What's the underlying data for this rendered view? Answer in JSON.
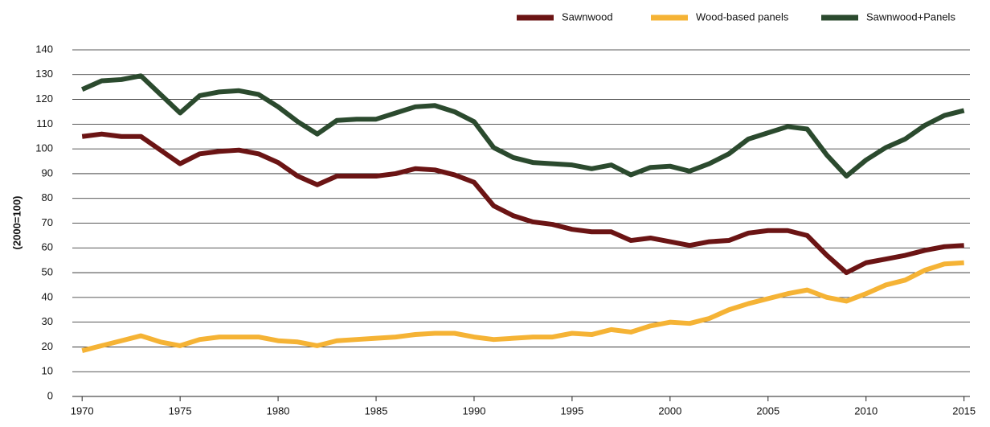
{
  "chart_data": {
    "type": "line",
    "ylabel": "(2000=100)",
    "x": [
      1970,
      1971,
      1972,
      1973,
      1974,
      1975,
      1976,
      1977,
      1978,
      1979,
      1980,
      1981,
      1982,
      1983,
      1984,
      1985,
      1986,
      1987,
      1988,
      1989,
      1990,
      1991,
      1992,
      1993,
      1994,
      1995,
      1996,
      1997,
      1998,
      1999,
      2000,
      2001,
      2002,
      2003,
      2004,
      2005,
      2006,
      2007,
      2008,
      2009,
      2010,
      2011,
      2012,
      2013,
      2014,
      2015
    ],
    "series": [
      {
        "name": "Sawnwood",
        "color": "#6b1414",
        "values": [
          105,
          106,
          105,
          105,
          99.5,
          94,
          98,
          99,
          99.5,
          98,
          94.5,
          89,
          85.5,
          89,
          89,
          89,
          90,
          92,
          91.5,
          89.5,
          86.5,
          77,
          73,
          70.5,
          69.5,
          67.5,
          66.5,
          66.5,
          63,
          64,
          62.5,
          61,
          62.5,
          63,
          66,
          67,
          67,
          65,
          57,
          50,
          54,
          55.5,
          57,
          59,
          60.5,
          61
        ]
      },
      {
        "name": "Wood-based panels",
        "color": "#f5b335",
        "values": [
          18.5,
          20.5,
          22.5,
          24.5,
          22,
          20.5,
          23,
          24,
          24,
          24,
          22.5,
          22,
          20.5,
          22.5,
          23,
          23.5,
          24,
          25,
          25.5,
          25.5,
          24,
          23,
          23.5,
          24,
          24,
          25.5,
          25,
          27,
          26,
          28.5,
          30,
          29.5,
          31.5,
          35,
          37.5,
          39.5,
          41.5,
          43,
          40,
          38.5,
          41.5,
          45,
          47,
          51,
          53.5,
          54
        ]
      },
      {
        "name": "Sawnwood+Panels",
        "color": "#2b4a2e",
        "values": [
          124,
          127.5,
          128,
          129.5,
          122,
          114.5,
          121.5,
          123,
          123.5,
          122,
          117,
          111,
          106,
          111.5,
          112,
          112,
          114.5,
          117,
          117.5,
          115,
          111,
          100.5,
          96.5,
          94.5,
          94,
          93.5,
          92,
          93.5,
          89.5,
          92.5,
          93,
          91,
          94,
          98,
          104,
          106.5,
          109,
          108,
          97.5,
          89,
          95.5,
          100.5,
          104,
          109.5,
          113.5,
          115.5
        ]
      }
    ],
    "xlim": [
      1969.5,
      2015.3
    ],
    "xticks": [
      1970,
      1975,
      1980,
      1985,
      1990,
      1995,
      2000,
      2005,
      2010,
      2015
    ],
    "ylim": [
      0,
      140
    ],
    "yticks": [
      0,
      10,
      20,
      30,
      40,
      50,
      60,
      70,
      80,
      90,
      100,
      110,
      120,
      130,
      140
    ],
    "grid": true,
    "legend": "top-right"
  }
}
